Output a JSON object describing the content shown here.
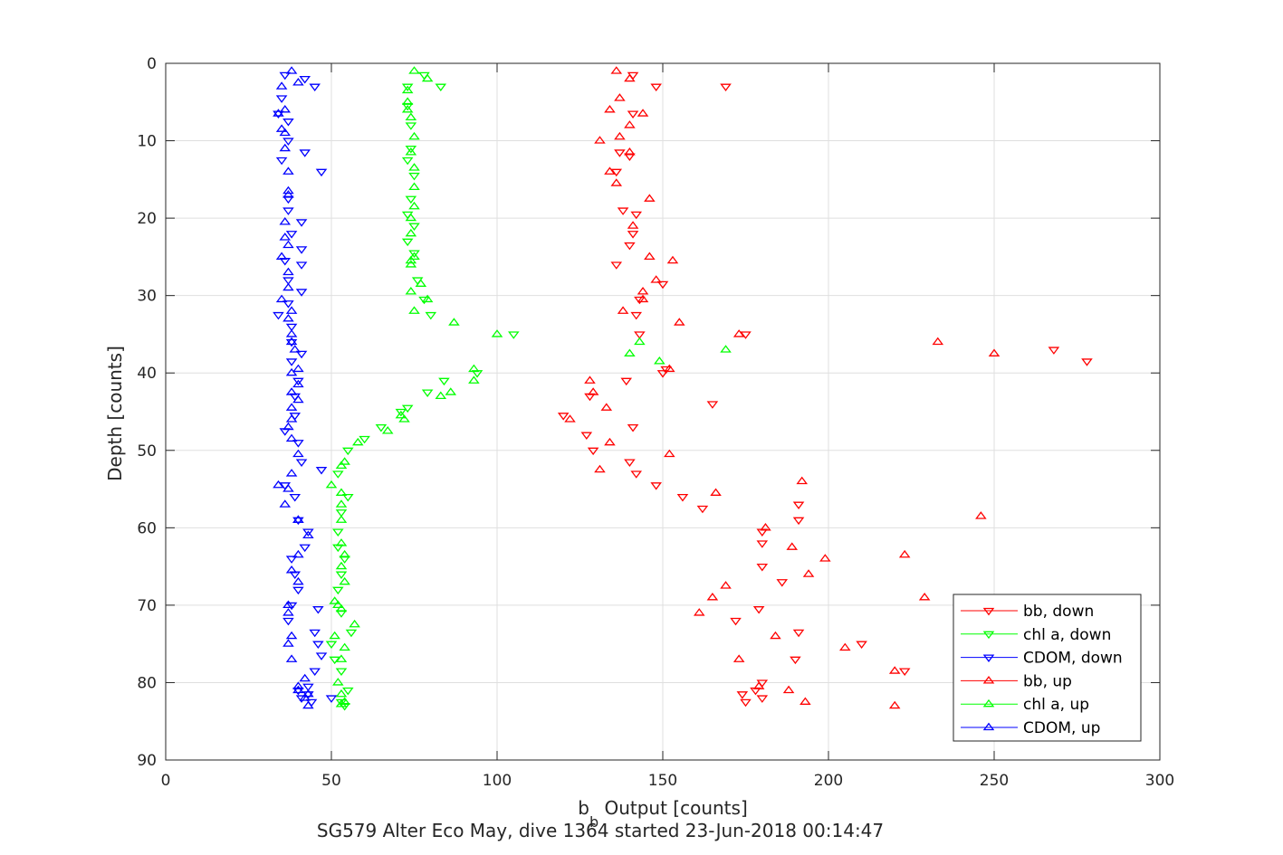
{
  "chart_data": {
    "type": "scatter",
    "xlabel": "b",
    "xlabel_sub": "b",
    "xlabel_rest": " Output [counts]",
    "ylabel": "Depth [counts]",
    "caption": "SG579 Alter Eco May, dive 1364 started 23-Jun-2018 00:14:47",
    "xlim": [
      0,
      300
    ],
    "ylim": [
      0,
      90
    ],
    "y_reversed": true,
    "grid": true,
    "legend_position": "bottom-right",
    "xticks": [
      "0",
      "50",
      "100",
      "150",
      "200",
      "250",
      "300"
    ],
    "yticks": [
      "0",
      "10",
      "20",
      "30",
      "40",
      "50",
      "60",
      "70",
      "80",
      "90"
    ],
    "series": [
      {
        "name": "bb, down",
        "color": "#ff0000",
        "marker": "triangle-down",
        "points": [
          [
            141,
            1.5
          ],
          [
            148,
            3
          ],
          [
            169,
            3
          ],
          [
            141,
            6.5
          ],
          [
            140,
            12
          ],
          [
            137,
            11.5
          ],
          [
            136,
            14
          ],
          [
            138,
            19
          ],
          [
            142,
            19.5
          ],
          [
            141,
            22
          ],
          [
            140,
            23.5
          ],
          [
            136,
            26
          ],
          [
            150,
            28.5
          ],
          [
            143,
            30.5
          ],
          [
            142,
            32.5
          ],
          [
            143,
            35
          ],
          [
            175,
            35
          ],
          [
            278,
            38.5
          ],
          [
            268,
            37
          ],
          [
            151,
            39.5
          ],
          [
            150,
            40
          ],
          [
            139,
            41
          ],
          [
            165,
            44
          ],
          [
            128,
            43
          ],
          [
            141,
            47
          ],
          [
            120,
            45.5
          ],
          [
            127,
            48
          ],
          [
            129,
            50
          ],
          [
            140,
            51.5
          ],
          [
            142,
            53
          ],
          [
            148,
            54.5
          ],
          [
            156,
            56
          ],
          [
            162,
            57.5
          ],
          [
            191,
            59
          ],
          [
            191,
            57
          ],
          [
            180,
            60.5
          ],
          [
            180,
            62
          ],
          [
            180,
            65
          ],
          [
            186,
            67
          ],
          [
            179,
            70.5
          ],
          [
            172,
            72
          ],
          [
            191,
            73.5
          ],
          [
            210,
            75
          ],
          [
            190,
            77
          ],
          [
            223,
            78.5
          ],
          [
            180,
            80
          ],
          [
            174,
            81.5
          ],
          [
            178,
            81
          ],
          [
            180,
            82
          ],
          [
            175,
            82.5
          ]
        ]
      },
      {
        "name": "chl a, down",
        "color": "#00ff00",
        "marker": "triangle-down",
        "points": [
          [
            78,
            1.5
          ],
          [
            83,
            3
          ],
          [
            73,
            3
          ],
          [
            73,
            5.5
          ],
          [
            74,
            8
          ],
          [
            74,
            11
          ],
          [
            73,
            12.5
          ],
          [
            75,
            14.5
          ],
          [
            74,
            17.5
          ],
          [
            73,
            19.5
          ],
          [
            75,
            21
          ],
          [
            73,
            23
          ],
          [
            75,
            24.5
          ],
          [
            76,
            28
          ],
          [
            78,
            30.5
          ],
          [
            80,
            32.5
          ],
          [
            105,
            35
          ],
          [
            94,
            40
          ],
          [
            84,
            41
          ],
          [
            79,
            42.5
          ],
          [
            71,
            45
          ],
          [
            73,
            44.5
          ],
          [
            65,
            47
          ],
          [
            60,
            48.5
          ],
          [
            55,
            50
          ],
          [
            52,
            53
          ],
          [
            55,
            56
          ],
          [
            53,
            58
          ],
          [
            52,
            60.5
          ],
          [
            52,
            62.5
          ],
          [
            54,
            64
          ],
          [
            53,
            66
          ],
          [
            52,
            68
          ],
          [
            53,
            71
          ],
          [
            56,
            73.5
          ],
          [
            50,
            75
          ],
          [
            51,
            77
          ],
          [
            53,
            78.5
          ],
          [
            55,
            81
          ],
          [
            53,
            82.5
          ],
          [
            54,
            83
          ]
        ]
      },
      {
        "name": "CDOM, down",
        "color": "#0000ff",
        "marker": "triangle-down",
        "points": [
          [
            36,
            1.5
          ],
          [
            42,
            2
          ],
          [
            45,
            3
          ],
          [
            35,
            4.5
          ],
          [
            34,
            6.5
          ],
          [
            37,
            7.5
          ],
          [
            37,
            10
          ],
          [
            42,
            11.5
          ],
          [
            35,
            12.5
          ],
          [
            47,
            14
          ],
          [
            37,
            17.5
          ],
          [
            37,
            19
          ],
          [
            41,
            20.5
          ],
          [
            38,
            22
          ],
          [
            41,
            24
          ],
          [
            36,
            25.5
          ],
          [
            41,
            26
          ],
          [
            37,
            28
          ],
          [
            41,
            29.5
          ],
          [
            37,
            31
          ],
          [
            34,
            32.5
          ],
          [
            38,
            34
          ],
          [
            38,
            36
          ],
          [
            41,
            37.5
          ],
          [
            38,
            38.5
          ],
          [
            40,
            41
          ],
          [
            39,
            43
          ],
          [
            39,
            45.5
          ],
          [
            36,
            47.5
          ],
          [
            40,
            49
          ],
          [
            41,
            51.5
          ],
          [
            47,
            52.5
          ],
          [
            36,
            54.5
          ],
          [
            39,
            56
          ],
          [
            40,
            59
          ],
          [
            43,
            60.5
          ],
          [
            42,
            62.5
          ],
          [
            38,
            64
          ],
          [
            39,
            66
          ],
          [
            40,
            68
          ],
          [
            38,
            70
          ],
          [
            46,
            70.5
          ],
          [
            37,
            72
          ],
          [
            45,
            73.5
          ],
          [
            46,
            75
          ],
          [
            47,
            76.5
          ],
          [
            45,
            78.5
          ],
          [
            43,
            80.5
          ],
          [
            40,
            81
          ],
          [
            41,
            82
          ],
          [
            43,
            81.5
          ],
          [
            44,
            82.5
          ],
          [
            50,
            82
          ]
        ]
      },
      {
        "name": "bb, up",
        "color": "#ff0000",
        "marker": "triangle-up",
        "points": [
          [
            136,
            1
          ],
          [
            140,
            2
          ],
          [
            137,
            4.5
          ],
          [
            134,
            6
          ],
          [
            144,
            6.5
          ],
          [
            140,
            8
          ],
          [
            131,
            10
          ],
          [
            137,
            9.5
          ],
          [
            140,
            11.5
          ],
          [
            134,
            14
          ],
          [
            136,
            15.5
          ],
          [
            146,
            17.5
          ],
          [
            141,
            21
          ],
          [
            146,
            25
          ],
          [
            153,
            25.5
          ],
          [
            148,
            28
          ],
          [
            144,
            29.5
          ],
          [
            144,
            30.5
          ],
          [
            138,
            32
          ],
          [
            155,
            33.5
          ],
          [
            173,
            35
          ],
          [
            233,
            36
          ],
          [
            250,
            37.5
          ],
          [
            152,
            39.5
          ],
          [
            128,
            41
          ],
          [
            129,
            42.5
          ],
          [
            122,
            46
          ],
          [
            133,
            44.5
          ],
          [
            134,
            49
          ],
          [
            152,
            50.5
          ],
          [
            131,
            52.5
          ],
          [
            192,
            54
          ],
          [
            166,
            55.5
          ],
          [
            246,
            58.5
          ],
          [
            181,
            60
          ],
          [
            189,
            62.5
          ],
          [
            199,
            64
          ],
          [
            223,
            63.5
          ],
          [
            194,
            66
          ],
          [
            169,
            67.5
          ],
          [
            165,
            69
          ],
          [
            229,
            69
          ],
          [
            161,
            71
          ],
          [
            184,
            74
          ],
          [
            205,
            75.5
          ],
          [
            173,
            77
          ],
          [
            220,
            78.5
          ],
          [
            179,
            80.5
          ],
          [
            188,
            81
          ],
          [
            193,
            82.5
          ],
          [
            220,
            83
          ]
        ]
      },
      {
        "name": "chl a, up",
        "color": "#00ff00",
        "marker": "triangle-up",
        "points": [
          [
            75,
            1
          ],
          [
            79,
            2
          ],
          [
            73,
            3.5
          ],
          [
            73,
            5
          ],
          [
            73,
            6
          ],
          [
            74,
            7
          ],
          [
            75,
            9.5
          ],
          [
            74,
            11.5
          ],
          [
            75,
            13.5
          ],
          [
            75,
            16
          ],
          [
            75,
            18.5
          ],
          [
            74,
            20
          ],
          [
            74,
            22
          ],
          [
            75,
            25
          ],
          [
            74,
            25.5
          ],
          [
            74,
            26
          ],
          [
            77,
            28.5
          ],
          [
            74,
            29.5
          ],
          [
            79,
            30.5
          ],
          [
            75,
            32
          ],
          [
            87,
            33.5
          ],
          [
            100,
            35
          ],
          [
            169,
            37
          ],
          [
            140,
            37.5
          ],
          [
            143,
            36
          ],
          [
            149,
            38.5
          ],
          [
            93,
            39.5
          ],
          [
            93,
            41
          ],
          [
            86,
            42.5
          ],
          [
            83,
            43
          ],
          [
            71,
            45.5
          ],
          [
            72,
            46
          ],
          [
            67,
            47.5
          ],
          [
            58,
            49
          ],
          [
            54,
            51.5
          ],
          [
            53,
            52
          ],
          [
            50,
            54.5
          ],
          [
            53,
            55.5
          ],
          [
            53,
            57
          ],
          [
            53,
            59
          ],
          [
            53,
            62
          ],
          [
            54,
            63.5
          ],
          [
            53,
            65
          ],
          [
            54,
            67
          ],
          [
            51,
            69.5
          ],
          [
            52,
            70
          ],
          [
            53,
            70.5
          ],
          [
            57,
            72.5
          ],
          [
            51,
            74
          ],
          [
            54,
            75.5
          ],
          [
            53,
            77
          ],
          [
            52,
            80
          ],
          [
            53,
            81.5
          ],
          [
            54,
            82.5
          ],
          [
            53,
            82.8
          ]
        ]
      },
      {
        "name": "CDOM, up",
        "color": "#0000ff",
        "marker": "triangle-up",
        "points": [
          [
            38,
            1
          ],
          [
            40,
            2.5
          ],
          [
            35,
            3
          ],
          [
            36,
            6
          ],
          [
            34,
            6.5
          ],
          [
            35,
            8.5
          ],
          [
            36,
            9
          ],
          [
            36,
            11
          ],
          [
            37,
            14
          ],
          [
            37,
            16.5
          ],
          [
            37,
            17
          ],
          [
            36,
            20.5
          ],
          [
            36,
            22.5
          ],
          [
            37,
            23.5
          ],
          [
            35,
            25
          ],
          [
            37,
            27
          ],
          [
            37,
            29
          ],
          [
            35,
            30.5
          ],
          [
            38,
            32
          ],
          [
            37,
            33
          ],
          [
            38,
            35
          ],
          [
            38,
            36
          ],
          [
            39,
            37
          ],
          [
            40,
            39.5
          ],
          [
            38,
            40
          ],
          [
            40,
            41.5
          ],
          [
            38,
            42.5
          ],
          [
            40,
            43.5
          ],
          [
            38,
            44.5
          ],
          [
            38,
            46
          ],
          [
            37,
            47
          ],
          [
            38,
            48.5
          ],
          [
            40,
            50.5
          ],
          [
            38,
            53
          ],
          [
            34,
            54.5
          ],
          [
            37,
            55
          ],
          [
            36,
            57
          ],
          [
            40,
            59
          ],
          [
            40,
            59
          ],
          [
            43,
            61
          ],
          [
            40,
            63.5
          ],
          [
            38,
            65.5
          ],
          [
            40,
            67
          ],
          [
            37,
            70
          ],
          [
            37,
            71
          ],
          [
            38,
            74
          ],
          [
            37,
            75
          ],
          [
            38,
            77
          ],
          [
            42,
            79.5
          ],
          [
            40,
            80.5
          ],
          [
            40,
            81
          ],
          [
            43,
            81.5
          ],
          [
            42,
            82
          ],
          [
            43,
            83
          ]
        ]
      }
    ]
  }
}
